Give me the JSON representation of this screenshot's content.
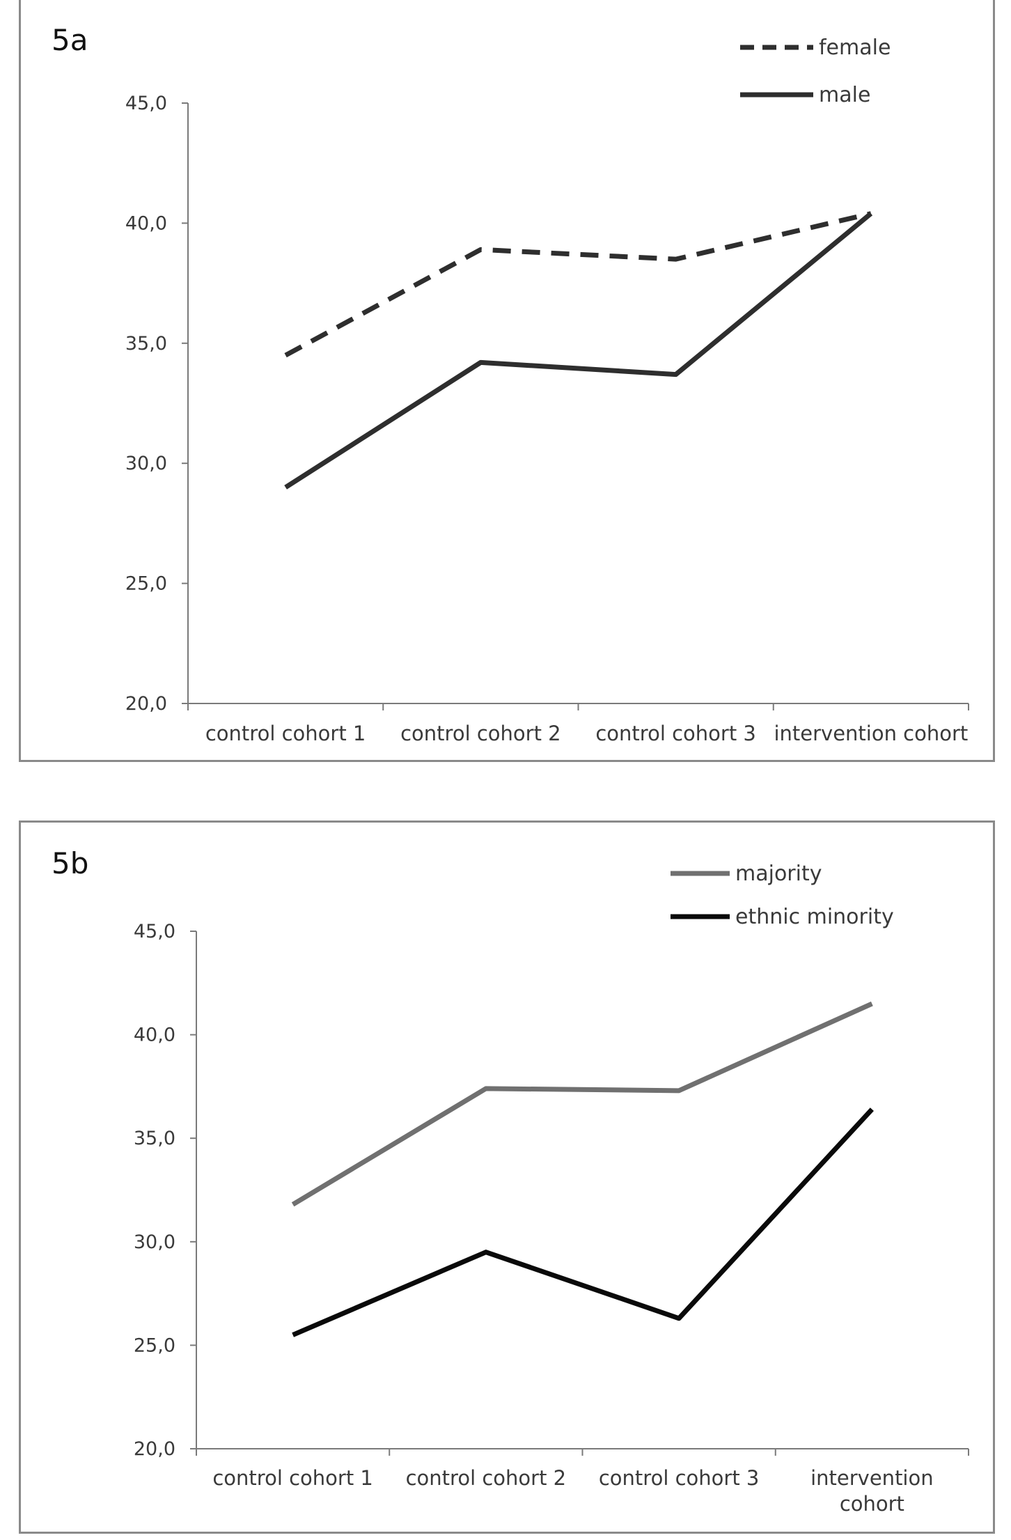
{
  "chart_data": [
    {
      "type": "line",
      "panel_label": "5a",
      "categories": [
        "control cohort 1",
        "control cohort 2",
        "control cohort 3",
        "intervention cohort"
      ],
      "ylim": [
        20,
        45
      ],
      "yticks": [
        "20,0",
        "25,0",
        "30,0",
        "35,0",
        "40,0",
        "45,0"
      ],
      "ytick_values": [
        20,
        25,
        30,
        35,
        40,
        45
      ],
      "legend_position": "top-right",
      "series": [
        {
          "name": "female",
          "values": [
            34.5,
            38.9,
            38.5,
            40.4
          ],
          "color": "#2e2e2e",
          "dash": "dashed"
        },
        {
          "name": "male",
          "values": [
            29.0,
            34.2,
            33.7,
            40.4
          ],
          "color": "#2e2e2e",
          "dash": "solid"
        }
      ]
    },
    {
      "type": "line",
      "panel_label": "5b",
      "categories": [
        "control cohort 1",
        "control cohort 2",
        "control cohort 3",
        "intervention cohort"
      ],
      "ylim": [
        20,
        45
      ],
      "yticks": [
        "20,0",
        "25,0",
        "30,0",
        "35,0",
        "40,0",
        "45,0"
      ],
      "ytick_values": [
        20,
        25,
        30,
        35,
        40,
        45
      ],
      "legend_position": "top-right",
      "series": [
        {
          "name": "majority",
          "values": [
            31.8,
            37.4,
            37.3,
            41.5
          ],
          "color": "#707070",
          "dash": "solid"
        },
        {
          "name": "ethnic minority",
          "values": [
            25.5,
            29.5,
            26.3,
            36.4
          ],
          "color": "#0a0a0a",
          "dash": "solid"
        }
      ]
    }
  ]
}
